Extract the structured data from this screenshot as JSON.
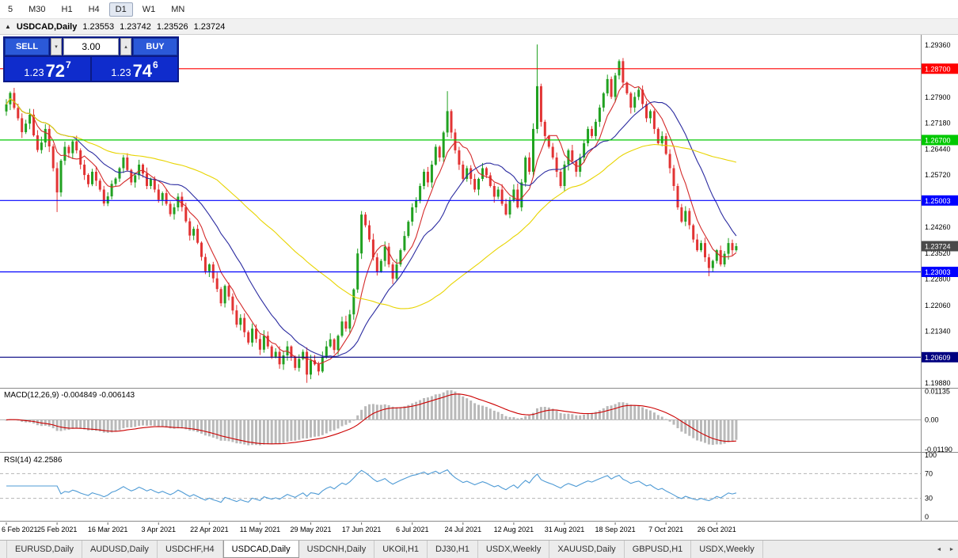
{
  "toolbar": {
    "timeframes": [
      "5",
      "M30",
      "H1",
      "H4",
      "D1",
      "W1",
      "MN"
    ],
    "active": "D1"
  },
  "titlebar": {
    "symbol": "USDCAD,Daily",
    "open": "1.23553",
    "high": "1.23742",
    "low": "1.23526",
    "close": "1.23724"
  },
  "icons": {
    "chart": "▲",
    "volume_down": "▾",
    "volume_up": "▴",
    "tab_left": "◄",
    "tab_right": "►"
  },
  "trade_panel": {
    "sell_label": "SELL",
    "buy_label": "BUY",
    "volume": "3.00",
    "sell_price": {
      "base": "1.23",
      "pips": "72",
      "pipette": "7"
    },
    "buy_price": {
      "base": "1.23",
      "pips": "74",
      "pipette": "6"
    }
  },
  "chart_data": {
    "type": "candlestick",
    "symbol": "USDCAD",
    "timeframe": "Daily",
    "colors": {
      "up": "#21a121",
      "down": "#e23434"
    },
    "y_scale": {
      "min": 1.1975,
      "max": 1.2965
    },
    "y_ticks": [
      1.2936,
      1.2864,
      1.279,
      1.2718,
      1.2644,
      1.2572,
      1.25,
      1.2426,
      1.2352,
      1.228,
      1.2206,
      1.2134,
      1.2061,
      1.1988
    ],
    "hlines": [
      {
        "price": 1.287,
        "label": "1.28700",
        "color": "#ff0000"
      },
      {
        "price": 1.267,
        "label": "1.26700",
        "color": "#00c800"
      },
      {
        "price": 1.25003,
        "label": "1.25003",
        "color": "#0000ff"
      },
      {
        "price": 1.23003,
        "label": "1.23003",
        "color": "#0000ff"
      },
      {
        "price": 1.20609,
        "label": "1.20609",
        "color": "#000080"
      }
    ],
    "current_price": {
      "value": 1.23724,
      "label": "1.23724",
      "color": "#4a4a4a"
    },
    "first_open": 1.275,
    "closes": [
      1.277,
      1.2802,
      1.276,
      1.2731,
      1.2692,
      1.2716,
      1.2741,
      1.2683,
      1.2642,
      1.2663,
      1.2701,
      1.2652,
      1.2591,
      1.2523,
      1.2612,
      1.2651,
      1.2633,
      1.2666,
      1.2641,
      1.2601,
      1.2572,
      1.2546,
      1.2581,
      1.2556,
      1.2531,
      1.2492,
      1.2512,
      1.2547,
      1.2562,
      1.2591,
      1.2621,
      1.2586,
      1.2551,
      1.2571,
      1.2601,
      1.2576,
      1.2541,
      1.2561,
      1.2531,
      1.2502,
      1.2521,
      1.2491,
      1.2462,
      1.2481,
      1.2511,
      1.2482,
      1.2442,
      1.2402,
      1.2421,
      1.2382,
      1.2342,
      1.2302,
      1.2321,
      1.2282,
      1.2252,
      1.2212,
      1.2261,
      1.2231,
      1.2192,
      1.2152,
      1.2171,
      1.2131,
      1.2102,
      1.2141,
      1.2112,
      1.2082,
      1.2121,
      1.2091,
      1.2062,
      1.2076,
      1.2041,
      1.2066,
      1.2091,
      1.2061,
      1.2031,
      1.2056,
      1.2076,
      1.2012,
      1.2052,
      1.2041,
      1.2021,
      1.2061,
      1.2091,
      1.2111,
      1.2081,
      1.2121,
      1.2161,
      1.2141,
      1.2181,
      1.2251,
      1.2352,
      1.2461,
      1.2431,
      1.2391,
      1.2341,
      1.2301,
      1.2331,
      1.2371,
      1.2321,
      1.2281,
      1.2321,
      1.2361,
      1.2401,
      1.2441,
      1.2481,
      1.2501,
      1.2541,
      1.2581,
      1.2551,
      1.2601,
      1.2651,
      1.2621,
      1.2691,
      1.2751,
      1.2691,
      1.2641,
      1.2601,
      1.2561,
      1.2591,
      1.2561,
      1.2531,
      1.2561,
      1.2591,
      1.2571,
      1.2541,
      1.2511,
      1.2531,
      1.2491,
      1.2461,
      1.2501,
      1.2531,
      1.2481,
      1.2551,
      1.2621,
      1.2581,
      1.2701,
      1.2821,
      1.2721,
      1.2681,
      1.2651,
      1.2621,
      1.2581,
      1.2541,
      1.2601,
      1.2641,
      1.2611,
      1.2581,
      1.2621,
      1.2661,
      1.2701,
      1.2681,
      1.2721,
      1.2761,
      1.2801,
      1.2841,
      1.2791,
      1.2851,
      1.2891,
      1.2831,
      1.2801,
      1.2761,
      1.2791,
      1.2811,
      1.2771,
      1.2731,
      1.2751,
      1.2701,
      1.2661,
      1.2681,
      1.2631,
      1.2591,
      1.2541,
      1.2481,
      1.2441,
      1.2471,
      1.2431,
      1.2391,
      1.2361,
      1.2381,
      1.2341,
      1.2311,
      1.2331,
      1.2361,
      1.2321,
      1.2351,
      1.2381,
      1.2361,
      1.23724
    ],
    "wick_overrides": {
      "13": {
        "low": 1.2468
      },
      "77": {
        "low": 1.1989
      },
      "113": {
        "high": 1.2807
      },
      "136": {
        "high": 1.2938
      },
      "157": {
        "high": 1.2896
      },
      "180": {
        "low": 1.2288
      }
    },
    "ma": [
      {
        "period": 7,
        "color": "#d42a2a"
      },
      {
        "period": 18,
        "color": "#2b2ba0"
      },
      {
        "period": 55,
        "color": "#e8d400"
      }
    ],
    "x_labels": [
      "6 Feb 2021",
      "25 Feb 2021",
      "16 Mar 2021",
      "3 Apr 2021",
      "22 Apr 2021",
      "11 May 2021",
      "29 May 2021",
      "17 Jun 2021",
      "6 Jul 2021",
      "24 Jul 2021",
      "12 Aug 2021",
      "31 Aug 2021",
      "18 Sep 2021",
      "7 Oct 2021",
      "26 Oct 2021"
    ],
    "x_label_indices": [
      0,
      13,
      26,
      39,
      52,
      65,
      78,
      91,
      104,
      117,
      130,
      143,
      156,
      169,
      182
    ],
    "macd": {
      "name": "MACD(12,26,9)",
      "values_text": "-0.004849 -0.006143",
      "fast": 12,
      "slow": 26,
      "signal": 9,
      "scale_max": 0.0124,
      "scale_min": -0.0128,
      "ticks": [
        {
          "v": 0.01135,
          "label": "0.01135"
        },
        {
          "v": 0,
          "label": "0.00"
        },
        {
          "v": -0.0119,
          "label": "-0.01190"
        }
      ],
      "histogram_color": "#b9b9b9",
      "signal_color": "#cc0000"
    },
    "rsi": {
      "name": "RSI(14)",
      "value_text": "42.2586",
      "period": 14,
      "line_color": "#4f9bd5",
      "levels_dashed": [
        70,
        30
      ],
      "ticks": [
        {
          "v": 100,
          "label": "100"
        },
        {
          "v": 70,
          "label": "70"
        },
        {
          "v": 30,
          "label": "30"
        },
        {
          "v": 0,
          "label": "0"
        }
      ]
    }
  },
  "tabs": {
    "items": [
      "EURUSD,Daily",
      "AUDUSD,Daily",
      "USDCHF,H4",
      "USDCAD,Daily",
      "USDCNH,Daily",
      "UKOil,H1",
      "DJ30,H1",
      "USDX,Weekly",
      "XAUUSD,Daily",
      "GBPUSD,H1",
      "USDX,Weekly"
    ],
    "active_index": 3
  }
}
